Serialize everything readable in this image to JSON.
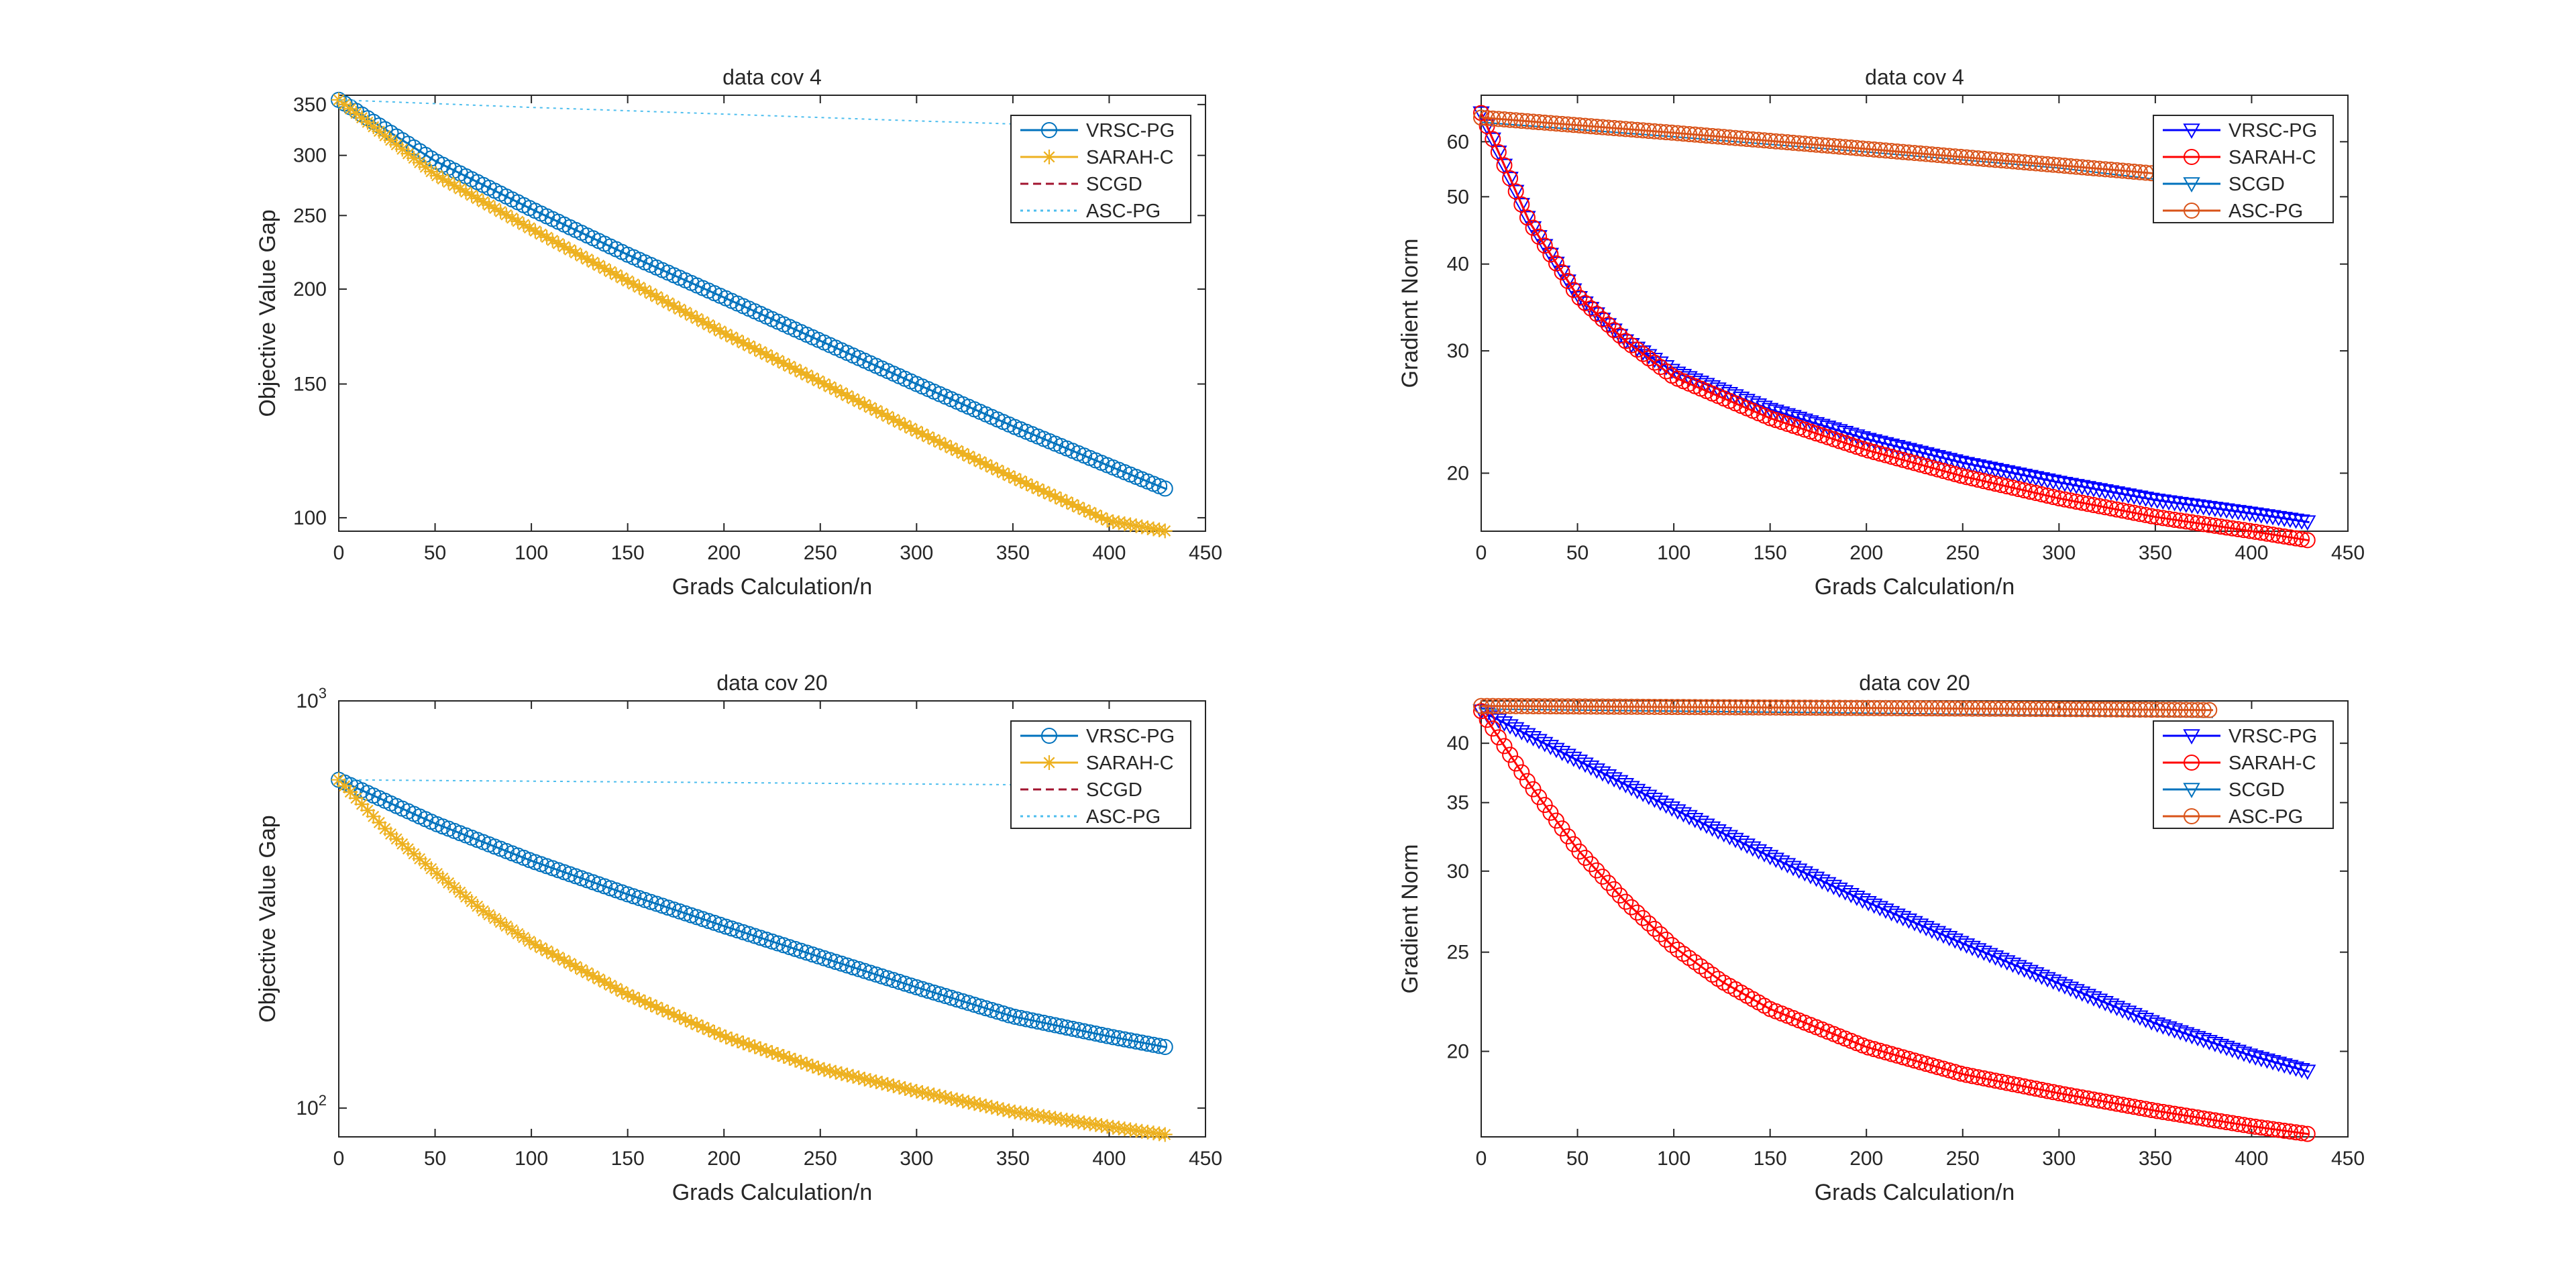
{
  "chart_data": [
    {
      "type": "line",
      "title": "data cov 4",
      "xlabel": "Grads Calculation/n",
      "ylabel": "Objective Value Gap",
      "y_scale": "log",
      "xlim": [
        0,
        450
      ],
      "ylim": [
        96,
        360
      ],
      "x_ticks": [
        0,
        50,
        100,
        150,
        200,
        250,
        300,
        350,
        400,
        450
      ],
      "y_ticks": [
        100,
        150,
        200,
        250,
        300,
        350
      ],
      "y_tick_labels": [
        "100",
        "150",
        "200",
        "250",
        "300",
        "350"
      ],
      "legend_position": "top-right",
      "series": [
        {
          "name": "VRSC-PG",
          "color": "#0072bd",
          "line": "solid",
          "marker": "circle",
          "thick": true,
          "x": [
            0,
            50,
            100,
            150,
            200,
            250,
            300,
            350,
            400,
            430
          ],
          "y": [
            355,
            295,
            255,
            222,
            195,
            171,
            150,
            132,
            117,
            109
          ]
        },
        {
          "name": "SARAH-C",
          "color": "#edb120",
          "line": "solid",
          "marker": "star",
          "thick": true,
          "x": [
            0,
            50,
            100,
            150,
            200,
            250,
            300,
            350,
            400,
            430
          ],
          "y": [
            355,
            283,
            240,
            205,
            175,
            151,
            130,
            113,
            99,
            96
          ]
        },
        {
          "name": "SCGD",
          "color": "#a2142f",
          "line": "dashed",
          "marker": "none",
          "thick": false,
          "x": [],
          "y": []
        },
        {
          "name": "ASC-PG",
          "color": "#4dbeee",
          "line": "dotted",
          "marker": "none",
          "thick": false,
          "x": [
            0,
            100,
            200,
            300,
            350
          ],
          "y": [
            355,
            347,
            340,
            333,
            330
          ]
        }
      ]
    },
    {
      "type": "line",
      "title": "data cov 4",
      "xlabel": "Grads Calculation/n",
      "ylabel": "Gradient Norm",
      "y_scale": "log",
      "xlim": [
        0,
        450
      ],
      "ylim": [
        16.5,
        70
      ],
      "x_ticks": [
        0,
        50,
        100,
        150,
        200,
        250,
        300,
        350,
        400,
        450
      ],
      "y_ticks": [
        20,
        30,
        40,
        50,
        60
      ],
      "y_tick_labels": [
        "20",
        "30",
        "40",
        "50",
        "60"
      ],
      "legend_position": "top-right",
      "series": [
        {
          "name": "VRSC-PG",
          "color": "#0000ff",
          "line": "solid",
          "marker": "triangle-down",
          "thick": true,
          "x": [
            0,
            25,
            50,
            75,
            100,
            150,
            200,
            250,
            300,
            350,
            400,
            430
          ],
          "y": [
            66,
            46,
            36,
            31,
            28,
            24.7,
            22.4,
            20.7,
            19.4,
            18.3,
            17.5,
            17.0
          ]
        },
        {
          "name": "SARAH-C",
          "color": "#ff0000",
          "line": "solid",
          "marker": "circle",
          "thick": true,
          "x": [
            0,
            25,
            50,
            75,
            100,
            150,
            200,
            250,
            300,
            350,
            400,
            430
          ],
          "y": [
            66,
            46,
            36,
            31,
            27.5,
            24,
            21.6,
            19.8,
            18.4,
            17.3,
            16.5,
            16.0
          ]
        },
        {
          "name": "SCGD",
          "color": "#0072bd",
          "line": "solid",
          "marker": "triangle-down",
          "thick": false,
          "x": [
            0,
            100,
            200,
            300,
            350
          ],
          "y": [
            64,
            61,
            58,
            55,
            53
          ]
        },
        {
          "name": "ASC-PG",
          "color": "#d95319",
          "line": "solid",
          "marker": "circle",
          "thick": true,
          "x": [
            0,
            100,
            200,
            300,
            350
          ],
          "y": [
            65,
            61.8,
            58.6,
            55.5,
            54
          ]
        }
      ]
    },
    {
      "type": "line",
      "title": "data cov 20",
      "xlabel": "Grads Calculation/n",
      "ylabel": "Objective Value Gap",
      "y_scale": "log",
      "xlim": [
        0,
        450
      ],
      "ylim": [
        85,
        1000
      ],
      "x_ticks": [
        0,
        50,
        100,
        150,
        200,
        250,
        300,
        350,
        400,
        450
      ],
      "y_ticks": [
        100,
        1000
      ],
      "y_tick_labels": [
        "10^2",
        "10^3"
      ],
      "legend_position": "top-right",
      "series": [
        {
          "name": "VRSC-PG",
          "color": "#0072bd",
          "line": "solid",
          "marker": "circle",
          "thick": true,
          "x": [
            0,
            50,
            100,
            150,
            200,
            250,
            300,
            350,
            400,
            430
          ],
          "y": [
            640,
            500,
            405,
            335,
            280,
            235,
            198,
            168,
            150,
            141
          ]
        },
        {
          "name": "SARAH-C",
          "color": "#edb120",
          "line": "solid",
          "marker": "star",
          "thick": true,
          "x": [
            0,
            25,
            50,
            75,
            100,
            150,
            200,
            250,
            300,
            350,
            400,
            430
          ],
          "y": [
            640,
            480,
            380,
            305,
            255,
            190,
            150,
            125,
            110,
            98,
            90,
            86
          ]
        },
        {
          "name": "SCGD",
          "color": "#a2142f",
          "line": "dashed",
          "marker": "none",
          "thick": false,
          "x": [],
          "y": []
        },
        {
          "name": "ASC-PG",
          "color": "#4dbeee",
          "line": "dotted",
          "marker": "none",
          "thick": false,
          "x": [
            0,
            100,
            200,
            300,
            360
          ],
          "y": [
            640,
            635,
            630,
            625,
            622
          ]
        }
      ]
    },
    {
      "type": "line",
      "title": "data cov 20",
      "xlabel": "Grads Calculation/n",
      "ylabel": "Gradient Norm",
      "y_scale": "log",
      "xlim": [
        0,
        450
      ],
      "ylim": [
        16.5,
        44
      ],
      "x_ticks": [
        0,
        50,
        100,
        150,
        200,
        250,
        300,
        350,
        400,
        450
      ],
      "y_ticks": [
        20,
        25,
        30,
        35,
        40
      ],
      "y_tick_labels": [
        "20",
        "25",
        "30",
        "35",
        "40"
      ],
      "legend_position": "top-right",
      "series": [
        {
          "name": "VRSC-PG",
          "color": "#0000ff",
          "line": "solid",
          "marker": "triangle-down",
          "thick": true,
          "x": [
            0,
            50,
            100,
            150,
            200,
            250,
            300,
            350,
            400,
            430
          ],
          "y": [
            43,
            38.5,
            34.5,
            31,
            28,
            25.5,
            23.3,
            21.3,
            19.8,
            19.1
          ]
        },
        {
          "name": "SARAH-C",
          "color": "#ff0000",
          "line": "solid",
          "marker": "circle",
          "thick": true,
          "x": [
            0,
            25,
            50,
            75,
            100,
            125,
            150,
            200,
            250,
            300,
            350,
            400,
            430
          ],
          "y": [
            43,
            36.5,
            31.5,
            28,
            25.3,
            23.4,
            22,
            20.2,
            19,
            18.2,
            17.5,
            16.9,
            16.6
          ]
        },
        {
          "name": "SCGD",
          "color": "#0072bd",
          "line": "solid",
          "marker": "triangle-down",
          "thick": false,
          "x": [
            0,
            100,
            200,
            300,
            380
          ],
          "y": [
            43.2,
            43.0,
            42.8,
            42.6,
            42.4
          ]
        },
        {
          "name": "ASC-PG",
          "color": "#d95319",
          "line": "solid",
          "marker": "circle",
          "thick": true,
          "x": [
            0,
            100,
            200,
            300,
            380
          ],
          "y": [
            43.5,
            43.4,
            43.3,
            43.2,
            43.1
          ]
        }
      ]
    }
  ]
}
